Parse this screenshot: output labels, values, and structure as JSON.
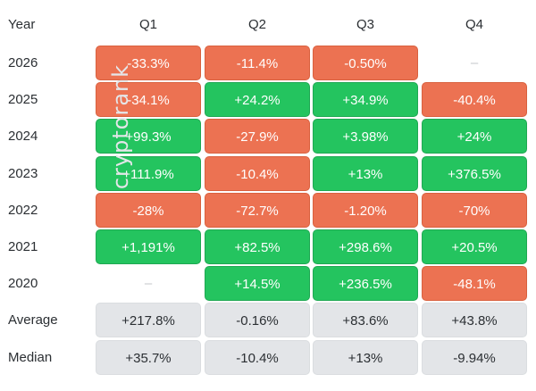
{
  "chart_data": {
    "type": "table",
    "columns": [
      "Year",
      "Q1",
      "Q2",
      "Q3",
      "Q4"
    ],
    "rows": [
      {
        "label": "2026",
        "cells": [
          "-33.3%",
          "-11.4%",
          "-0.50%",
          "–"
        ]
      },
      {
        "label": "2025",
        "cells": [
          "-34.1%",
          "+24.2%",
          "+34.9%",
          "-40.4%"
        ]
      },
      {
        "label": "2024",
        "cells": [
          "+99.3%",
          "-27.9%",
          "+3.98%",
          "+24%"
        ]
      },
      {
        "label": "2023",
        "cells": [
          "+111.9%",
          "-10.4%",
          "+13%",
          "+376.5%"
        ]
      },
      {
        "label": "2022",
        "cells": [
          "-28%",
          "-72.7%",
          "-1.20%",
          "-70%"
        ]
      },
      {
        "label": "2021",
        "cells": [
          "+1,191%",
          "+82.5%",
          "+298.6%",
          "+20.5%"
        ]
      },
      {
        "label": "2020",
        "cells": [
          "–",
          "+14.5%",
          "+236.5%",
          "-48.1%"
        ]
      }
    ],
    "summary": [
      {
        "label": "Average",
        "cells": [
          "+217.8%",
          "-0.16%",
          "+83.6%",
          "+43.8%"
        ]
      },
      {
        "label": "Median",
        "cells": [
          "+35.7%",
          "-10.4%",
          "+13%",
          "-9.94%"
        ]
      }
    ],
    "colors": {
      "positive": "#24c45f",
      "negative": "#ec7252",
      "summary": "#e3e5e8",
      "empty": "#c3c6ca"
    }
  },
  "watermark": "cryptorank"
}
